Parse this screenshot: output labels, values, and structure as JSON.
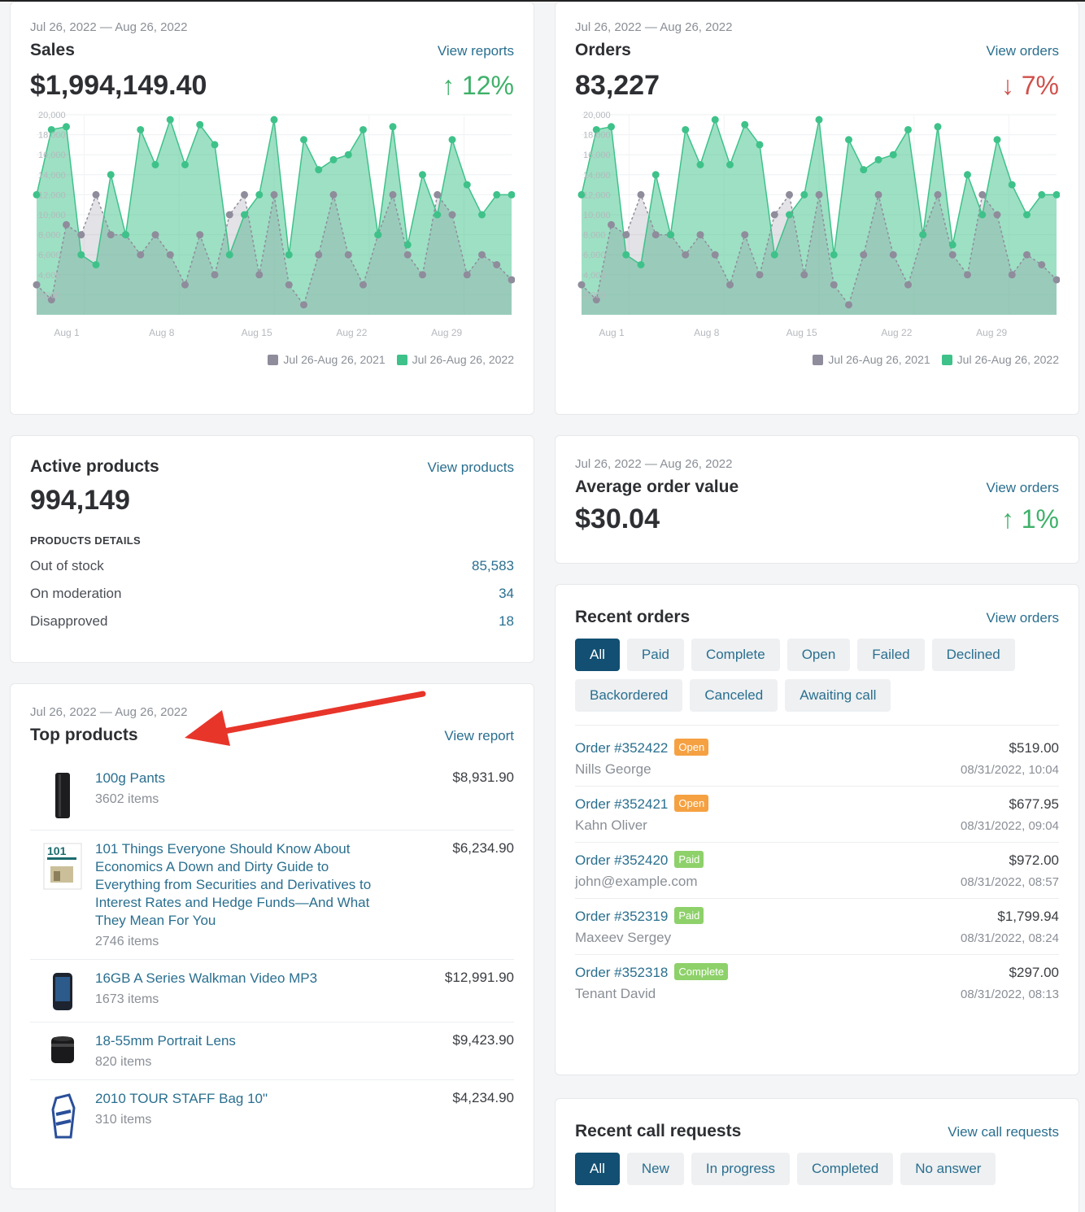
{
  "sales": {
    "date_range": "Jul 26, 2022 — Aug 26, 2022",
    "title": "Sales",
    "link": "View reports",
    "value": "$1,994,149.40",
    "delta": "12%",
    "delta_direction": "up"
  },
  "orders": {
    "date_range": "Jul 26, 2022 — Aug 26, 2022",
    "title": "Orders",
    "link": "View orders",
    "value": "83,227",
    "delta": "7%",
    "delta_direction": "down"
  },
  "chart_data": [
    {
      "type": "area",
      "x_ticks": [
        "Aug 1",
        "Aug 8",
        "Aug 15",
        "Aug 22",
        "Aug 29"
      ],
      "y_ticks": [
        "2,000",
        "4,000",
        "6,000",
        "8,000",
        "10,000",
        "12,000",
        "14,000",
        "16,000",
        "18,000",
        "20,000"
      ],
      "ylim": [
        0,
        20000
      ],
      "legend": "bottom-right",
      "grid": true,
      "series": [
        {
          "name": "Jul 26-Aug 26, 2021",
          "color": "#8f8c9c",
          "values": [
            3000,
            1500,
            9000,
            8000,
            12000,
            8000,
            8000,
            6000,
            8000,
            6000,
            3000,
            8000,
            4000,
            10000,
            12000,
            4000,
            12000,
            3000,
            1000,
            6000,
            12000,
            6000,
            3000,
            8000,
            12000,
            6000,
            4000,
            12000,
            10000,
            4000,
            6000,
            5000,
            3500
          ]
        },
        {
          "name": "Jul 26-Aug 26, 2022",
          "color": "#3ec28a",
          "values": [
            12000,
            18500,
            18800,
            6000,
            5000,
            14000,
            8000,
            18500,
            15000,
            19500,
            15000,
            19000,
            17000,
            6000,
            10000,
            12000,
            19500,
            6000,
            17500,
            14500,
            15500,
            16000,
            18500,
            8000,
            18800,
            7000,
            14000,
            10000,
            17500,
            13000,
            10000,
            12000,
            12000
          ]
        }
      ]
    },
    {
      "type": "area",
      "x_ticks": [
        "Aug 1",
        "Aug 8",
        "Aug 15",
        "Aug 22",
        "Aug 29"
      ],
      "y_ticks": [
        "2,000",
        "4,000",
        "6,000",
        "8,000",
        "10,000",
        "12,000",
        "14,000",
        "16,000",
        "18,000",
        "20,000"
      ],
      "ylim": [
        0,
        20000
      ],
      "legend": "bottom-right",
      "grid": true,
      "series": [
        {
          "name": "Jul 26-Aug 26, 2021",
          "color": "#8f8c9c",
          "values": [
            3000,
            1500,
            9000,
            8000,
            12000,
            8000,
            8000,
            6000,
            8000,
            6000,
            3000,
            8000,
            4000,
            10000,
            12000,
            4000,
            12000,
            3000,
            1000,
            6000,
            12000,
            6000,
            3000,
            8000,
            12000,
            6000,
            4000,
            12000,
            10000,
            4000,
            6000,
            5000,
            3500
          ]
        },
        {
          "name": "Jul 26-Aug 26, 2022",
          "color": "#3ec28a",
          "values": [
            12000,
            18500,
            18800,
            6000,
            5000,
            14000,
            8000,
            18500,
            15000,
            19500,
            15000,
            19000,
            17000,
            6000,
            10000,
            12000,
            19500,
            6000,
            17500,
            14500,
            15500,
            16000,
            18500,
            8000,
            18800,
            7000,
            14000,
            10000,
            17500,
            13000,
            10000,
            12000,
            12000
          ]
        }
      ]
    }
  ],
  "active_products": {
    "title": "Active products",
    "link": "View products",
    "value": "994,149",
    "subheading": "PRODUCTS DETAILS",
    "rows": [
      {
        "label": "Out of stock",
        "value": "85,583"
      },
      {
        "label": "On moderation",
        "value": "34"
      },
      {
        "label": "Disapproved",
        "value": "18"
      }
    ]
  },
  "aov": {
    "date_range": "Jul 26, 2022 — Aug 26, 2022",
    "title": "Average order value",
    "link": "View orders",
    "value": "$30.04",
    "delta": "1%"
  },
  "top_products": {
    "date_range": "Jul 26, 2022 — Aug 26, 2022",
    "title": "Top products",
    "link": "View report",
    "items": [
      {
        "name": "100g Pants",
        "items": "3602 items",
        "price": "$8,931.90",
        "icon": "pants-icon"
      },
      {
        "name": "101 Things Everyone Should Know About Economics A Down and Dirty Guide to Everything from Securities and Derivatives to Interest Rates and Hedge Funds—And What They Mean For You",
        "items": "2746 items",
        "price": "$6,234.90",
        "icon": "book-icon"
      },
      {
        "name": "16GB A Series Walkman Video MP3",
        "items": "1673 items",
        "price": "$12,991.90",
        "icon": "mp3-player-icon"
      },
      {
        "name": "18-55mm Portrait Lens",
        "items": "820 items",
        "price": "$9,423.90",
        "icon": "camera-lens-icon"
      },
      {
        "name": "2010 TOUR STAFF Bag 10\"",
        "items": "310 items",
        "price": "$4,234.90",
        "icon": "golf-bag-icon"
      }
    ],
    "book_cover_text": "101"
  },
  "recent_orders": {
    "title": "Recent orders",
    "link": "View orders",
    "filters": [
      "All",
      "Paid",
      "Complete",
      "Open",
      "Failed",
      "Declined",
      "Backordered",
      "Canceled",
      "Awaiting call"
    ],
    "active_filter": "All",
    "orders": [
      {
        "id": "Order #352422",
        "status": "Open",
        "status_color": "#f5a142",
        "customer": "Nills George",
        "amount": "$519.00",
        "time": "08/31/2022, 10:04"
      },
      {
        "id": "Order #352421",
        "status": "Open",
        "status_color": "#f5a142",
        "customer": "Kahn Oliver",
        "amount": "$677.95",
        "time": "08/31/2022, 09:04"
      },
      {
        "id": "Order #352420",
        "status": "Paid",
        "status_color": "#8ed16a",
        "customer": "john@example.com",
        "amount": "$972.00",
        "time": "08/31/2022, 08:57"
      },
      {
        "id": "Order #352319",
        "status": "Paid",
        "status_color": "#8ed16a",
        "customer": "Maxeev Sergey",
        "amount": "$1,799.94",
        "time": "08/31/2022, 08:24"
      },
      {
        "id": "Order #352318",
        "status": "Complete",
        "status_color": "#8ed16a",
        "customer": "Tenant David",
        "amount": "$297.00",
        "time": "08/31/2022, 08:13"
      }
    ]
  },
  "recent_calls": {
    "title": "Recent call requests",
    "link": "View call requests",
    "filters": [
      "All",
      "New",
      "In progress",
      "Completed",
      "No answer"
    ],
    "active_filter": "All"
  }
}
